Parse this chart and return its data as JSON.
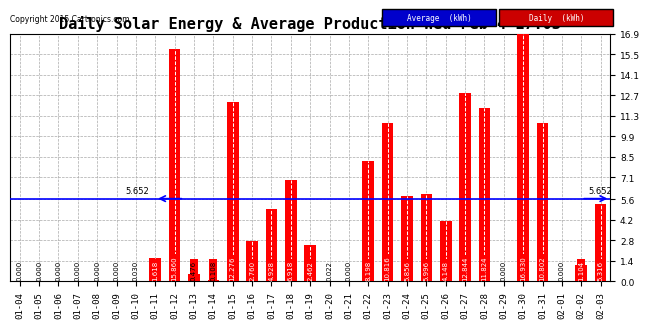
{
  "title": "Daily Solar Energy & Average Production Wed Feb 4 17:03",
  "copyright": "Copyright 2015 Cartronics.com",
  "categories": [
    "01-04",
    "01-05",
    "01-06",
    "01-07",
    "01-08",
    "01-09",
    "01-10",
    "01-11",
    "01-12",
    "01-13",
    "01-14",
    "01-15",
    "01-16",
    "01-17",
    "01-18",
    "01-19",
    "01-20",
    "01-21",
    "01-22",
    "01-23",
    "01-24",
    "01-25",
    "01-26",
    "01-27",
    "01-28",
    "01-29",
    "01-30",
    "01-31",
    "02-01",
    "02-02",
    "02-03"
  ],
  "values": [
    0.0,
    0.0,
    0.0,
    0.0,
    0.0,
    0.0,
    0.03,
    1.618,
    15.86,
    0.476,
    0.108,
    12.276,
    2.76,
    4.928,
    6.918,
    2.462,
    0.022,
    0.0,
    8.198,
    10.816,
    5.856,
    5.996,
    4.148,
    12.844,
    11.824,
    0.0,
    16.93,
    10.802,
    0.0,
    1.104,
    5.316
  ],
  "average_value": 5.652,
  "bar_color": "#FF0000",
  "average_line_color": "#0000FF",
  "background_color": "#FFFFFF",
  "grid_color": "#AAAAAA",
  "ylim": [
    0.0,
    16.9
  ],
  "yticks": [
    0.0,
    1.4,
    2.8,
    4.2,
    5.6,
    7.1,
    8.5,
    9.9,
    11.3,
    12.7,
    14.1,
    15.5,
    16.9
  ],
  "average_label": "Average  (kWh)",
  "daily_label": "Daily  (kWh)",
  "average_label_bg": "#0000CC",
  "daily_label_bg": "#CC0000",
  "title_fontsize": 11,
  "axis_fontsize": 6.5,
  "value_fontsize": 5.0,
  "average_annotation_label": "5.652"
}
